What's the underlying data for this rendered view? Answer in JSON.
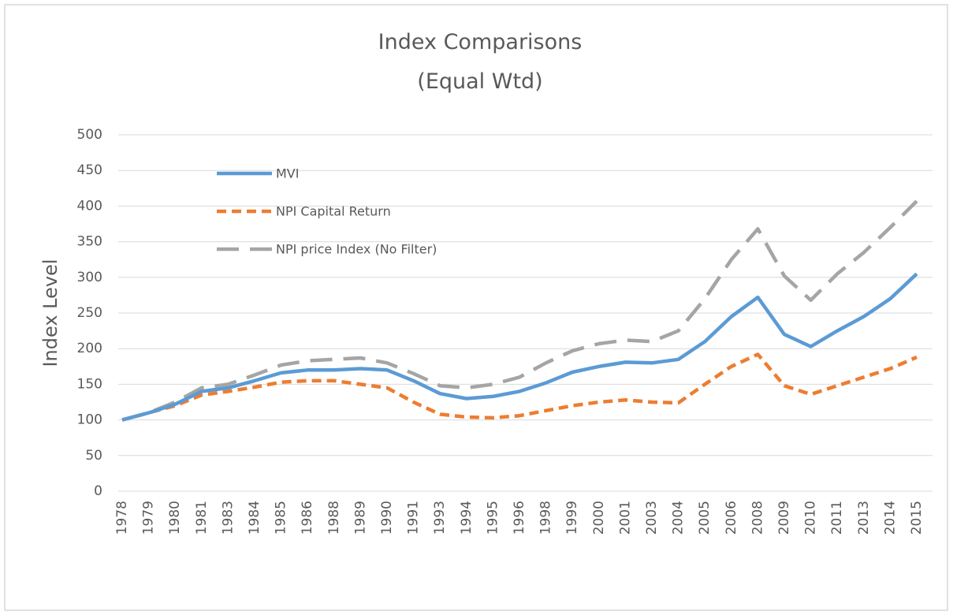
{
  "chart_data": {
    "type": "line",
    "title": "Index Comparisons",
    "subtitle": "(Equal Wtd)",
    "y_label": "Index Level",
    "categories": [
      "1978",
      "1979",
      "1980",
      "1981",
      "1983",
      "1984",
      "1985",
      "1986",
      "1988",
      "1989",
      "1990",
      "1991",
      "1993",
      "1994",
      "1995",
      "1996",
      "1998",
      "1999",
      "2000",
      "2001",
      "2003",
      "2004",
      "2005",
      "2006",
      "2008",
      "2009",
      "2010",
      "2011",
      "2013",
      "2014",
      "2015"
    ],
    "series": [
      {
        "name": "MVI",
        "color": "#5b9bd5",
        "dash": "solid",
        "values": [
          100,
          110,
          122,
          140,
          145,
          155,
          166,
          170,
          170,
          172,
          170,
          155,
          137,
          130,
          133,
          140,
          152,
          167,
          175,
          181,
          180,
          185,
          210,
          245,
          272,
          220,
          203,
          225,
          245,
          270,
          305
        ]
      },
      {
        "name": "NPI Capital Return",
        "color": "#ed7d31",
        "dash": "short",
        "values": [
          100,
          110,
          120,
          135,
          140,
          146,
          153,
          155,
          155,
          150,
          145,
          125,
          108,
          104,
          103,
          106,
          113,
          120,
          125,
          128,
          125,
          124,
          150,
          175,
          192,
          148,
          136,
          148,
          160,
          172,
          188
        ]
      },
      {
        "name": "NPI price Index (No Filter)",
        "color": "#a5a5a5",
        "dash": "long",
        "values": [
          100,
          110,
          125,
          145,
          150,
          163,
          177,
          183,
          185,
          187,
          180,
          165,
          148,
          145,
          150,
          160,
          180,
          197,
          207,
          212,
          210,
          225,
          270,
          325,
          368,
          302,
          268,
          305,
          335,
          370,
          407
        ]
      }
    ],
    "ylim": [
      0,
      500
    ],
    "yticks": [
      0,
      50,
      100,
      150,
      200,
      250,
      300,
      350,
      400,
      450,
      500
    ],
    "grid": true,
    "legend": "upper left"
  }
}
